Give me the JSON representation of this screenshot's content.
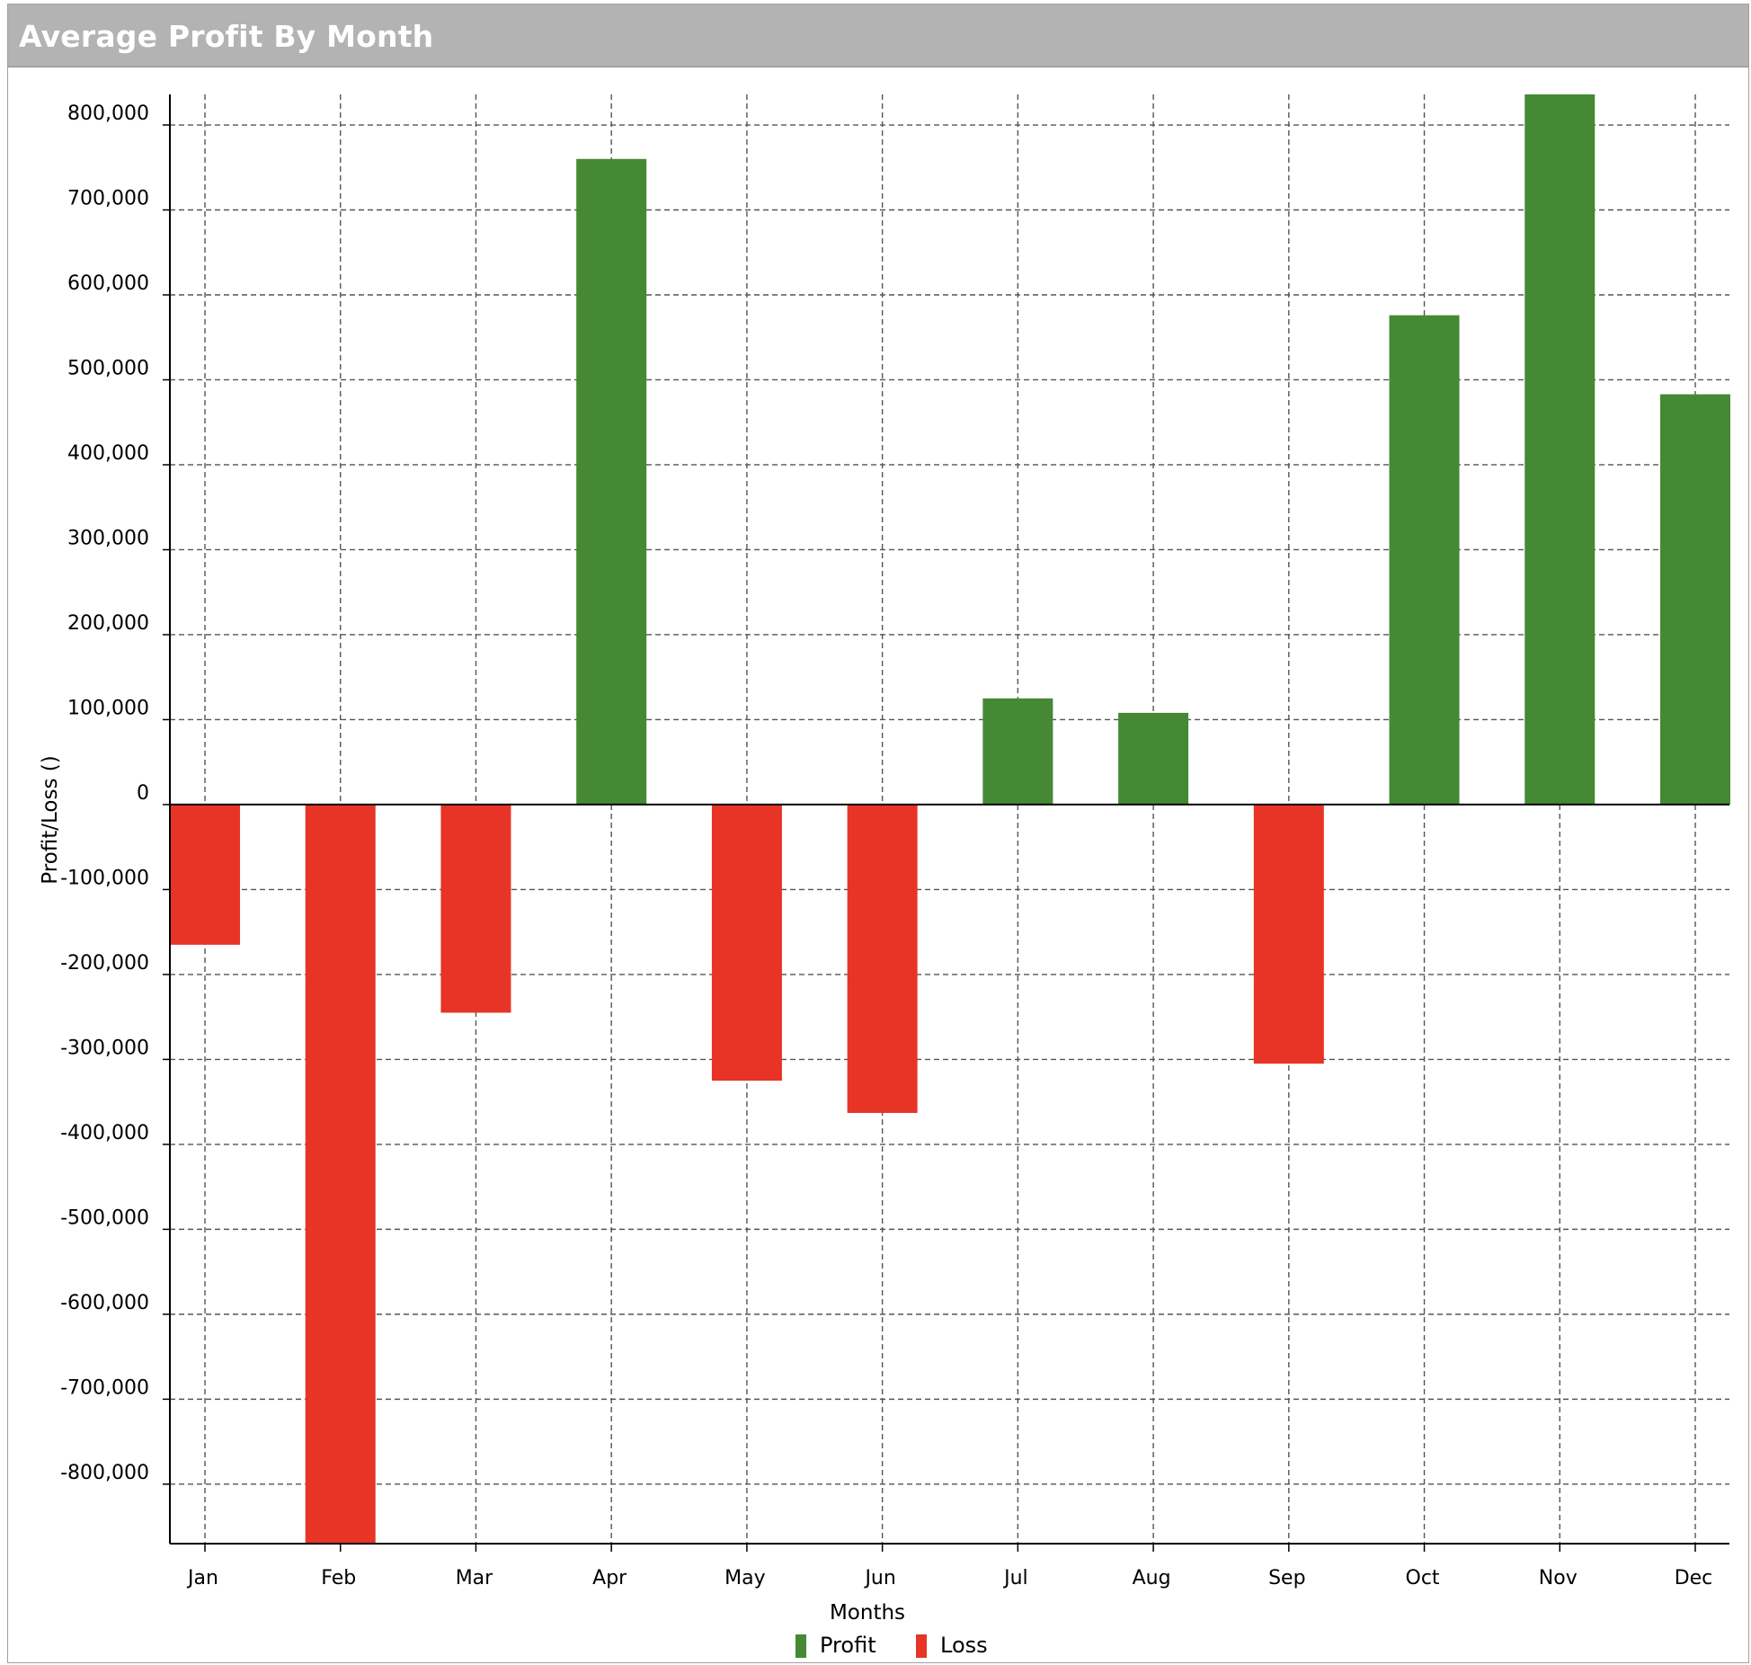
{
  "panel": {
    "title": "Average Profit By Month"
  },
  "chart_data": {
    "type": "bar",
    "title": "Average Profit By Month",
    "xlabel": "Months",
    "ylabel": "Profit/Loss ()",
    "categories": [
      "Jan",
      "Feb",
      "Mar",
      "Apr",
      "May",
      "Jun",
      "Jul",
      "Aug",
      "Sep",
      "Oct",
      "Nov",
      "Dec"
    ],
    "values": [
      -165000,
      -870000,
      -245000,
      760000,
      -325000,
      -363000,
      125000,
      108000,
      -305000,
      576000,
      836000,
      483000
    ],
    "series": [
      {
        "name": "Profit",
        "color": "#458934"
      },
      {
        "name": "Loss",
        "color": "#e73427"
      }
    ],
    "ylim": [
      -870000,
      836000
    ],
    "yticks": [
      800000,
      700000,
      600000,
      500000,
      400000,
      300000,
      200000,
      100000,
      0,
      -100000,
      -200000,
      -300000,
      -400000,
      -500000,
      -600000,
      -700000,
      -800000
    ],
    "ytick_labels": [
      "800,000",
      "700,000",
      "600,000",
      "500,000",
      "400,000",
      "300,000",
      "200,000",
      "100,000",
      "0",
      "-100,000",
      "-200,000",
      "-300,000",
      "-400,000",
      "-500,000",
      "-600,000",
      "-700,000",
      "-800,000"
    ],
    "grid": true,
    "legend_position": "bottom-center"
  }
}
